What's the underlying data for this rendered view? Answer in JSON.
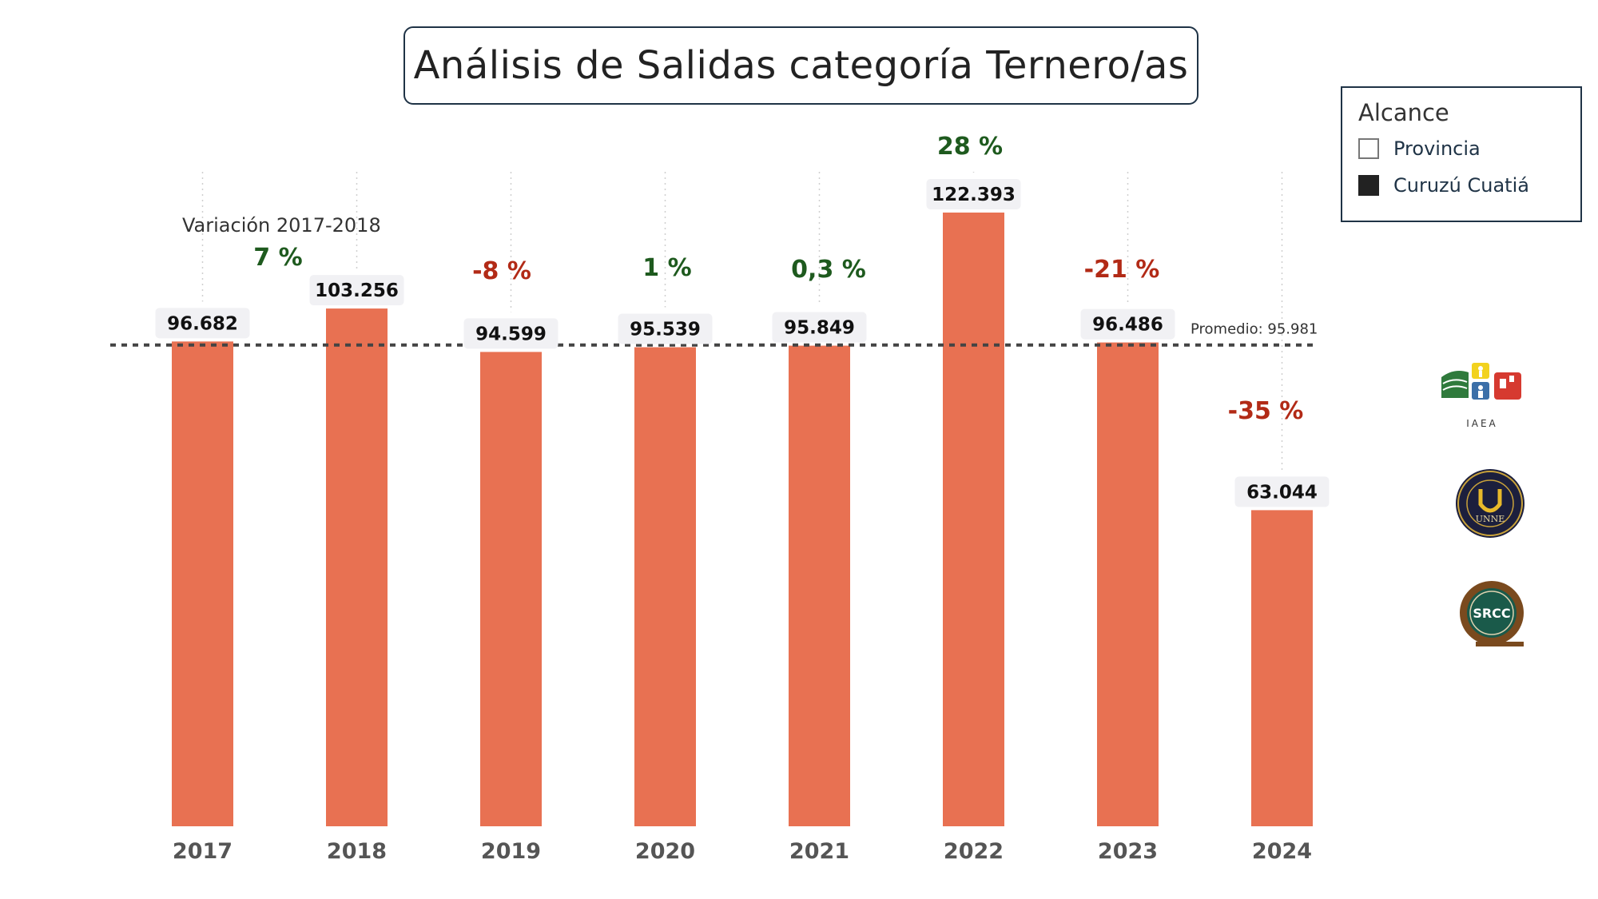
{
  "title": "Análisis de Salidas categoría Ternero/as",
  "legend": {
    "title": "Alcance",
    "items": [
      {
        "label": "Provincia",
        "selected": false
      },
      {
        "label": "Curuzú Cuatiá",
        "selected": true
      }
    ]
  },
  "logos": {
    "iaea_text": "IAEA",
    "unne_text": "UNNE",
    "srcc_text": "SRCC"
  },
  "chart_data": {
    "type": "bar",
    "categories": [
      "2017",
      "2018",
      "2019",
      "2020",
      "2021",
      "2022",
      "2023",
      "2024"
    ],
    "values": [
      96682,
      103256,
      94599,
      95539,
      95849,
      122393,
      96486,
      63044
    ],
    "value_labels": [
      "96.682",
      "103.256",
      "94.599",
      "95.539",
      "95.849",
      "122.393",
      "96.486",
      "63.044"
    ],
    "variations": [
      "7 %",
      "-8 %",
      "1 %",
      "0,3 %",
      "28 %",
      "-21 %",
      "-35 %"
    ],
    "variation_title": "Variación 2017-2018",
    "average": 95981,
    "average_label": "Promedio: 95.981",
    "ylim": [
      0,
      122393
    ],
    "colors": {
      "bar": "#e87152",
      "positive": "#1e5a1e",
      "negative": "#b22a16",
      "average_line": "#444444",
      "label_bg": "#f1f1f4"
    }
  }
}
